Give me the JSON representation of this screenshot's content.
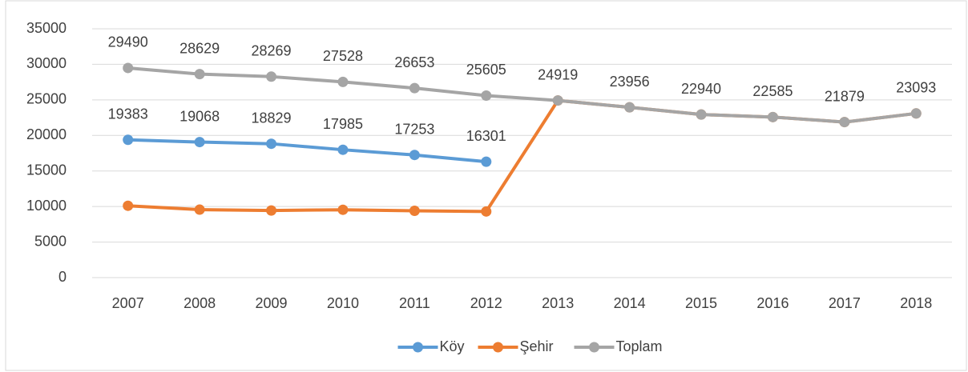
{
  "chart_data": {
    "type": "line",
    "categories": [
      "2007",
      "2008",
      "2009",
      "2010",
      "2011",
      "2012",
      "2013",
      "2014",
      "2015",
      "2016",
      "2017",
      "2018"
    ],
    "series": [
      {
        "name": "Köy",
        "color": "#5b9bd5",
        "labels": true,
        "values": [
          19383,
          19068,
          18829,
          17985,
          17253,
          16301,
          null,
          null,
          null,
          null,
          null,
          null
        ]
      },
      {
        "name": "Şehir",
        "color": "#ed7d31",
        "labels": false,
        "values": [
          10107,
          9561,
          9440,
          9543,
          9400,
          9304,
          24919,
          23956,
          22940,
          22585,
          21879,
          23093
        ]
      },
      {
        "name": "Toplam",
        "color": "#a5a5a5",
        "labels": true,
        "values": [
          29490,
          28629,
          28269,
          27528,
          26653,
          25605,
          24919,
          23956,
          22940,
          22585,
          21879,
          23093
        ]
      }
    ],
    "ylim": [
      0,
      35000
    ],
    "yticks": [
      0,
      5000,
      10000,
      15000,
      20000,
      25000,
      30000,
      35000
    ],
    "grid": true,
    "legend": "bottom"
  }
}
